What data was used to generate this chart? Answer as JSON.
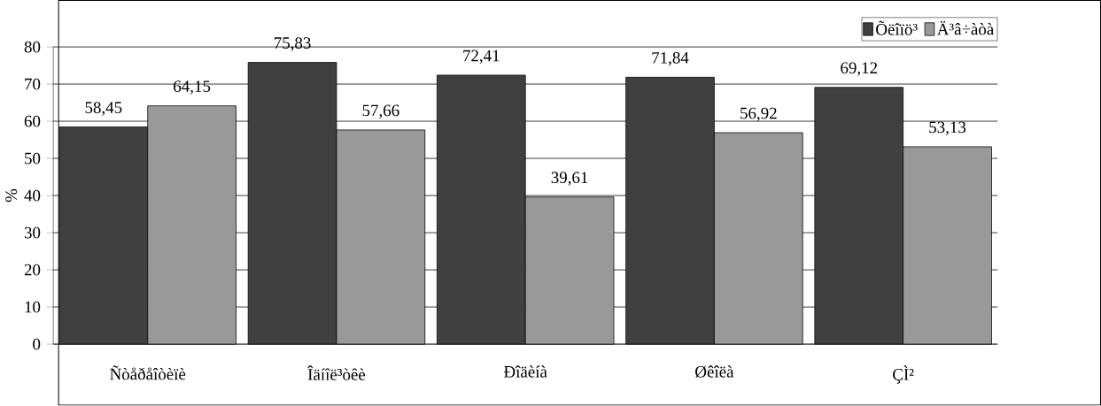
{
  "chart_data": {
    "type": "bar",
    "ylabel": "%",
    "categories": [
      "Ñòåðåîòèïè",
      "Îäíîë³òêè",
      "Ðîäèíà",
      "Øêîëà",
      "ÇÌ²"
    ],
    "series": [
      {
        "name": "Õëîïö³",
        "color": "#404040",
        "values": [
          58.45,
          75.83,
          72.41,
          71.84,
          69.12
        ],
        "value_labels": [
          "58,45",
          "75,83",
          "72,41",
          "71,84",
          "69,12"
        ]
      },
      {
        "name": "Ä³â÷àòà",
        "color": "#999999",
        "values": [
          64.15,
          57.66,
          39.61,
          56.92,
          53.13
        ],
        "value_labels": [
          "64,15",
          "57,66",
          "39,61",
          "56,92",
          "53,13"
        ]
      }
    ],
    "ylim": [
      0,
      80
    ],
    "yticks": [
      0,
      10,
      20,
      30,
      40,
      50,
      60,
      70,
      80
    ],
    "grid": "y",
    "legend": "top right"
  }
}
